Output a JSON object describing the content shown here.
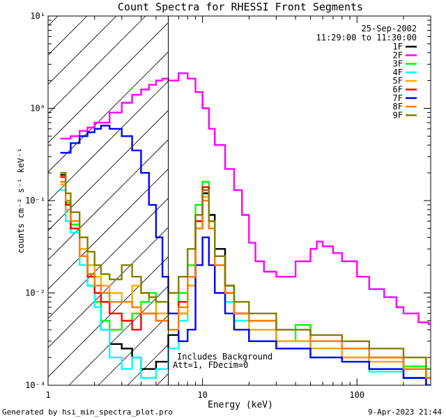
{
  "chart_data": {
    "type": "line",
    "title": "Count Spectra for RHESSI Front Segments",
    "xlabel": "Energy (keV)",
    "ylabel": "counts cm⁻² s⁻¹ keV⁻¹",
    "xscale": "log",
    "yscale": "log",
    "xlim": [
      1,
      300
    ],
    "ylim": [
      0.001,
      10
    ],
    "x_tick_labels": [
      {
        "value": 1,
        "label": "1"
      },
      {
        "value": 10,
        "label": "10"
      },
      {
        "value": 100,
        "label": "100"
      }
    ],
    "y_tick_labels": [
      {
        "value": 0.001,
        "label": "10⁻³"
      },
      {
        "value": 0.01,
        "label": "10⁻²"
      },
      {
        "value": 0.1,
        "label": "10⁻¹"
      },
      {
        "value": 1,
        "label": "10⁰"
      },
      {
        "value": 10,
        "label": "10¹"
      }
    ],
    "attenuator_line_kev": 6,
    "legend_position": "top-right",
    "legend_header": [
      "25-Sep-2002",
      "11:29:00 to 11:30:00"
    ],
    "annotation": [
      "Includes Background",
      "Att=1, FDecim=0"
    ],
    "series": [
      {
        "name": "1F",
        "color": "#000000",
        "points": [
          [
            1.2,
            0.19
          ],
          [
            1.3,
            0.09
          ],
          [
            1.4,
            0.055
          ],
          [
            1.6,
            0.03
          ],
          [
            1.8,
            0.016
          ],
          [
            2.0,
            0.008
          ],
          [
            2.2,
            0.004
          ],
          [
            2.5,
            0.0028
          ],
          [
            3.0,
            0.0025
          ],
          [
            3.5,
            0.002
          ],
          [
            4.0,
            0.0015
          ],
          [
            5.0,
            0.0018
          ],
          [
            6.0,
            0.0035
          ],
          [
            7.0,
            0.006
          ],
          [
            8.0,
            0.015
          ],
          [
            9.0,
            0.06
          ],
          [
            10.0,
            0.12
          ],
          [
            11.0,
            0.07
          ],
          [
            12.0,
            0.03
          ],
          [
            14.0,
            0.012
          ],
          [
            16.0,
            0.006
          ],
          [
            20.0,
            0.004
          ],
          [
            30.0,
            0.003
          ],
          [
            50.0,
            0.0025
          ],
          [
            80.0,
            0.002
          ],
          [
            120.0,
            0.0015
          ],
          [
            200.0,
            0.0012
          ],
          [
            280.0,
            0.001
          ]
        ]
      },
      {
        "name": "2F",
        "color": "#ff00ff",
        "points": [
          [
            1.2,
            0.47
          ],
          [
            1.4,
            0.5
          ],
          [
            1.6,
            0.57
          ],
          [
            1.8,
            0.62
          ],
          [
            2.0,
            0.7
          ],
          [
            2.5,
            0.9
          ],
          [
            3.0,
            1.15
          ],
          [
            3.5,
            1.4
          ],
          [
            4.0,
            1.6
          ],
          [
            4.5,
            1.8
          ],
          [
            5.0,
            2.0
          ],
          [
            5.5,
            2.1
          ],
          [
            6.0,
            2.0
          ],
          [
            7.0,
            2.4
          ],
          [
            8.0,
            2.1
          ],
          [
            9.0,
            1.5
          ],
          [
            10.0,
            1.0
          ],
          [
            11.0,
            0.6
          ],
          [
            12.0,
            0.4
          ],
          [
            14.0,
            0.22
          ],
          [
            16.0,
            0.13
          ],
          [
            18.0,
            0.07
          ],
          [
            20.0,
            0.035
          ],
          [
            22.0,
            0.022
          ],
          [
            25.0,
            0.017
          ],
          [
            30.0,
            0.015
          ],
          [
            40.0,
            0.022
          ],
          [
            50.0,
            0.03
          ],
          [
            55.0,
            0.036
          ],
          [
            60.0,
            0.032
          ],
          [
            70.0,
            0.027
          ],
          [
            80.0,
            0.022
          ],
          [
            100.0,
            0.015
          ],
          [
            120.0,
            0.011
          ],
          [
            150.0,
            0.009
          ],
          [
            180.0,
            0.007
          ],
          [
            200.0,
            0.006
          ],
          [
            250.0,
            0.0048
          ],
          [
            290.0,
            0.0046
          ]
        ]
      },
      {
        "name": "3F",
        "color": "#00ff00",
        "points": [
          [
            1.2,
            0.16
          ],
          [
            1.3,
            0.095
          ],
          [
            1.4,
            0.055
          ],
          [
            1.6,
            0.03
          ],
          [
            1.8,
            0.012
          ],
          [
            2.0,
            0.008
          ],
          [
            2.2,
            0.005
          ],
          [
            2.5,
            0.004
          ],
          [
            3.0,
            0.005
          ],
          [
            3.5,
            0.006
          ],
          [
            4.0,
            0.008
          ],
          [
            4.5,
            0.01
          ],
          [
            5.0,
            0.006
          ],
          [
            6.0,
            0.004
          ],
          [
            7.0,
            0.01
          ],
          [
            8.0,
            0.02
          ],
          [
            9.0,
            0.09
          ],
          [
            10.0,
            0.16
          ],
          [
            11.0,
            0.06
          ],
          [
            12.0,
            0.025
          ],
          [
            14.0,
            0.01
          ],
          [
            16.0,
            0.006
          ],
          [
            20.0,
            0.004
          ],
          [
            30.0,
            0.003
          ],
          [
            40.0,
            0.0045
          ],
          [
            50.0,
            0.003
          ],
          [
            80.0,
            0.0025
          ],
          [
            120.0,
            0.002
          ],
          [
            200.0,
            0.0016
          ],
          [
            280.0,
            0.0012
          ]
        ]
      },
      {
        "name": "4F",
        "color": "#00ffff",
        "points": [
          [
            1.2,
            0.13
          ],
          [
            1.3,
            0.06
          ],
          [
            1.4,
            0.045
          ],
          [
            1.6,
            0.02
          ],
          [
            1.8,
            0.012
          ],
          [
            2.0,
            0.007
          ],
          [
            2.2,
            0.004
          ],
          [
            2.5,
            0.002
          ],
          [
            3.0,
            0.0015
          ],
          [
            3.5,
            0.002
          ],
          [
            4.0,
            0.0012
          ],
          [
            5.0,
            0.0015
          ],
          [
            6.0,
            0.0025
          ],
          [
            7.0,
            0.005
          ],
          [
            8.0,
            0.012
          ],
          [
            9.0,
            0.05
          ],
          [
            10.0,
            0.13
          ],
          [
            11.0,
            0.05
          ],
          [
            12.0,
            0.02
          ],
          [
            14.0,
            0.008
          ],
          [
            16.0,
            0.005
          ],
          [
            20.0,
            0.003
          ],
          [
            30.0,
            0.0025
          ],
          [
            50.0,
            0.002
          ],
          [
            80.0,
            0.0018
          ],
          [
            120.0,
            0.0014
          ],
          [
            200.0,
            0.0012
          ],
          [
            280.0,
            0.001
          ]
        ]
      },
      {
        "name": "5F",
        "color": "#ffaa00",
        "points": [
          [
            1.2,
            0.15
          ],
          [
            1.3,
            0.08
          ],
          [
            1.4,
            0.05
          ],
          [
            1.6,
            0.03
          ],
          [
            1.8,
            0.02
          ],
          [
            2.0,
            0.015
          ],
          [
            2.2,
            0.012
          ],
          [
            2.5,
            0.01
          ],
          [
            3.0,
            0.008
          ],
          [
            3.5,
            0.012
          ],
          [
            4.0,
            0.01
          ],
          [
            4.5,
            0.009
          ],
          [
            5.0,
            0.006
          ],
          [
            6.0,
            0.004
          ],
          [
            7.0,
            0.006
          ],
          [
            8.0,
            0.012
          ],
          [
            9.0,
            0.05
          ],
          [
            10.0,
            0.11
          ],
          [
            11.0,
            0.05
          ],
          [
            12.0,
            0.02
          ],
          [
            14.0,
            0.01
          ],
          [
            16.0,
            0.006
          ],
          [
            20.0,
            0.004
          ],
          [
            30.0,
            0.003
          ],
          [
            50.0,
            0.0025
          ],
          [
            80.0,
            0.002
          ],
          [
            120.0,
            0.0018
          ],
          [
            200.0,
            0.0015
          ],
          [
            280.0,
            0.0012
          ]
        ]
      },
      {
        "name": "6F",
        "color": "#ff0000",
        "points": [
          [
            1.2,
            0.18
          ],
          [
            1.3,
            0.09
          ],
          [
            1.4,
            0.05
          ],
          [
            1.6,
            0.025
          ],
          [
            1.8,
            0.015
          ],
          [
            2.0,
            0.01
          ],
          [
            2.2,
            0.008
          ],
          [
            2.5,
            0.006
          ],
          [
            3.0,
            0.005
          ],
          [
            3.5,
            0.004
          ],
          [
            4.0,
            0.006
          ],
          [
            5.0,
            0.005
          ],
          [
            6.0,
            0.004
          ],
          [
            7.0,
            0.008
          ],
          [
            8.0,
            0.015
          ],
          [
            9.0,
            0.06
          ],
          [
            10.0,
            0.14
          ],
          [
            11.0,
            0.06
          ],
          [
            12.0,
            0.025
          ],
          [
            14.0,
            0.01
          ],
          [
            16.0,
            0.006
          ],
          [
            20.0,
            0.005
          ],
          [
            30.0,
            0.004
          ],
          [
            50.0,
            0.003
          ],
          [
            80.0,
            0.0025
          ],
          [
            120.0,
            0.002
          ],
          [
            200.0,
            0.0015
          ],
          [
            280.0,
            0.0012
          ]
        ]
      },
      {
        "name": "7F",
        "color": "#0000ff",
        "points": [
          [
            1.2,
            0.33
          ],
          [
            1.4,
            0.42
          ],
          [
            1.6,
            0.5
          ],
          [
            1.8,
            0.55
          ],
          [
            2.0,
            0.6
          ],
          [
            2.2,
            0.65
          ],
          [
            2.5,
            0.6
          ],
          [
            3.0,
            0.5
          ],
          [
            3.5,
            0.35
          ],
          [
            4.0,
            0.2
          ],
          [
            4.5,
            0.09
          ],
          [
            5.0,
            0.04
          ],
          [
            5.5,
            0.015
          ],
          [
            6.0,
            0.006
          ],
          [
            7.0,
            0.003
          ],
          [
            8.0,
            0.004
          ],
          [
            9.0,
            0.02
          ],
          [
            10.0,
            0.04
          ],
          [
            11.0,
            0.02
          ],
          [
            12.0,
            0.01
          ],
          [
            14.0,
            0.006
          ],
          [
            16.0,
            0.004
          ],
          [
            20.0,
            0.003
          ],
          [
            30.0,
            0.0025
          ],
          [
            50.0,
            0.002
          ],
          [
            80.0,
            0.0018
          ],
          [
            120.0,
            0.0015
          ],
          [
            200.0,
            0.0012
          ],
          [
            280.0,
            0.001
          ]
        ]
      },
      {
        "name": "8F",
        "color": "#ff7f00",
        "points": [
          [
            1.2,
            0.16
          ],
          [
            1.3,
            0.1
          ],
          [
            1.4,
            0.06
          ],
          [
            1.6,
            0.025
          ],
          [
            1.8,
            0.016
          ],
          [
            2.0,
            0.012
          ],
          [
            2.2,
            0.01
          ],
          [
            2.5,
            0.008
          ],
          [
            3.0,
            0.008
          ],
          [
            3.5,
            0.007
          ],
          [
            4.0,
            0.006
          ],
          [
            5.0,
            0.005
          ],
          [
            6.0,
            0.004
          ],
          [
            7.0,
            0.007
          ],
          [
            8.0,
            0.015
          ],
          [
            9.0,
            0.05
          ],
          [
            10.0,
            0.1
          ],
          [
            11.0,
            0.05
          ],
          [
            12.0,
            0.02
          ],
          [
            14.0,
            0.01
          ],
          [
            16.0,
            0.006
          ],
          [
            20.0,
            0.005
          ],
          [
            30.0,
            0.004
          ],
          [
            50.0,
            0.003
          ],
          [
            80.0,
            0.0025
          ],
          [
            120.0,
            0.002
          ],
          [
            200.0,
            0.0015
          ],
          [
            280.0,
            0.0012
          ]
        ]
      },
      {
        "name": "9F",
        "color": "#808000",
        "points": [
          [
            1.2,
            0.2
          ],
          [
            1.3,
            0.12
          ],
          [
            1.4,
            0.075
          ],
          [
            1.6,
            0.04
          ],
          [
            1.8,
            0.028
          ],
          [
            2.0,
            0.02
          ],
          [
            2.2,
            0.016
          ],
          [
            2.5,
            0.014
          ],
          [
            3.0,
            0.02
          ],
          [
            3.5,
            0.015
          ],
          [
            4.0,
            0.01
          ],
          [
            4.5,
            0.009
          ],
          [
            5.0,
            0.008
          ],
          [
            6.0,
            0.01
          ],
          [
            7.0,
            0.015
          ],
          [
            8.0,
            0.03
          ],
          [
            9.0,
            0.07
          ],
          [
            10.0,
            0.13
          ],
          [
            11.0,
            0.06
          ],
          [
            12.0,
            0.025
          ],
          [
            14.0,
            0.012
          ],
          [
            16.0,
            0.008
          ],
          [
            20.0,
            0.006
          ],
          [
            30.0,
            0.004
          ],
          [
            50.0,
            0.0035
          ],
          [
            80.0,
            0.003
          ],
          [
            120.0,
            0.0025
          ],
          [
            200.0,
            0.002
          ],
          [
            280.0,
            0.0015
          ]
        ]
      }
    ]
  },
  "footer": {
    "left": "Generated by hsi_min_spectra_plot.pro",
    "right": "9-Apr-2023 21:44"
  }
}
